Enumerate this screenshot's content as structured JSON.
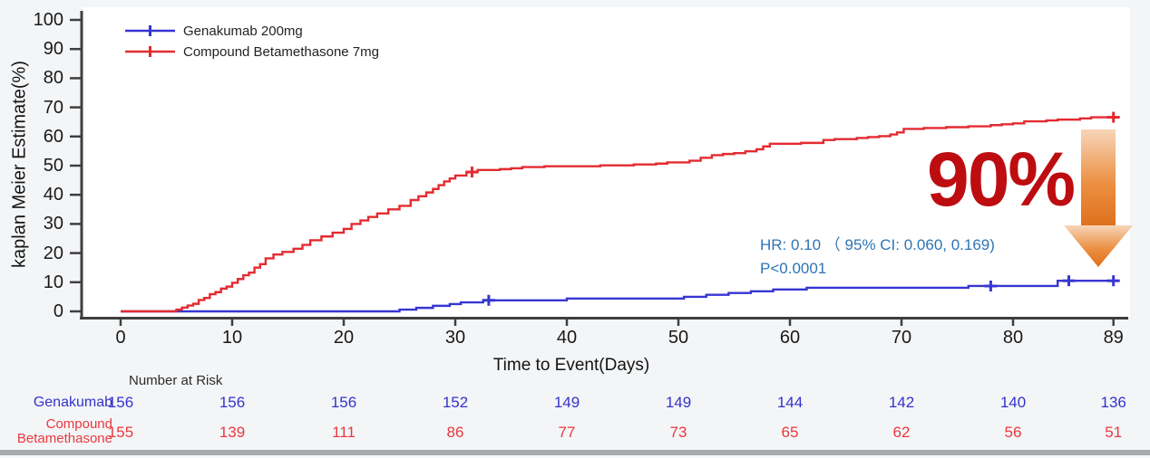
{
  "page": {
    "background": "#f4f5f7",
    "bottom_bar_color": "#a8aaad"
  },
  "chart_data": {
    "type": "line",
    "subtype": "kaplan-meier-step",
    "title": "",
    "xlabel": "Time to Event(Days)",
    "ylabel": "kaplan Meier Estimate(%)",
    "xlim": [
      0,
      89
    ],
    "ylim": [
      0,
      100
    ],
    "x_ticks": [
      0,
      10,
      20,
      30,
      40,
      50,
      60,
      70,
      80,
      89
    ],
    "y_ticks": [
      0,
      10,
      20,
      30,
      40,
      50,
      60,
      70,
      80,
      90,
      100
    ],
    "grid": false,
    "legend_position": "top-left-inside",
    "series": [
      {
        "name": "Genakumab 200mg",
        "color": "#3636d2",
        "points": [
          [
            0,
            0
          ],
          [
            24,
            0
          ],
          [
            25,
            0.6
          ],
          [
            26.5,
            1.2
          ],
          [
            28,
            1.9
          ],
          [
            29.5,
            2.5
          ],
          [
            30.5,
            3.1
          ],
          [
            32.5,
            3.8
          ],
          [
            40,
            4.4
          ],
          [
            50.5,
            5.0
          ],
          [
            52.5,
            5.7
          ],
          [
            54.5,
            6.3
          ],
          [
            56.5,
            6.9
          ],
          [
            58.5,
            7.5
          ],
          [
            61.5,
            8.1
          ],
          [
            76,
            8.7
          ],
          [
            84,
            10.5
          ],
          [
            89,
            10.5
          ]
        ],
        "censor_marks": [
          [
            33,
            3.8
          ],
          [
            78,
            8.7
          ],
          [
            85,
            10.5
          ],
          [
            89,
            10.5
          ]
        ]
      },
      {
        "name": "Compound Betamethasone 7mg",
        "color": "#e32b31",
        "points": [
          [
            0,
            0
          ],
          [
            4.5,
            0
          ],
          [
            5,
            0.6
          ],
          [
            5.5,
            1.3
          ],
          [
            6,
            2.0
          ],
          [
            6.5,
            2.6
          ],
          [
            7,
            3.9
          ],
          [
            7.5,
            4.6
          ],
          [
            8,
            5.9
          ],
          [
            8.5,
            6.6
          ],
          [
            9,
            7.8
          ],
          [
            9.5,
            8.5
          ],
          [
            10,
            9.8
          ],
          [
            10.5,
            11.1
          ],
          [
            11,
            12.4
          ],
          [
            11.5,
            13.3
          ],
          [
            12,
            15.0
          ],
          [
            12.5,
            16.2
          ],
          [
            13,
            18.2
          ],
          [
            13.7,
            19.5
          ],
          [
            14.5,
            20.4
          ],
          [
            15.5,
            21.5
          ],
          [
            16.3,
            22.8
          ],
          [
            17,
            24.4
          ],
          [
            18,
            25.7
          ],
          [
            19,
            27.0
          ],
          [
            20,
            28.3
          ],
          [
            20.7,
            30.0
          ],
          [
            21.5,
            31.2
          ],
          [
            22.2,
            32.4
          ],
          [
            23,
            33.6
          ],
          [
            24,
            35.0
          ],
          [
            25,
            36.2
          ],
          [
            26,
            38.2
          ],
          [
            26.7,
            39.5
          ],
          [
            27.4,
            40.8
          ],
          [
            28,
            42.0
          ],
          [
            28.5,
            43.3
          ],
          [
            29,
            44.6
          ],
          [
            29.5,
            45.6
          ],
          [
            30,
            46.6
          ],
          [
            31,
            47.8
          ],
          [
            32,
            48.5
          ],
          [
            34,
            48.8
          ],
          [
            35,
            49.1
          ],
          [
            36,
            49.5
          ],
          [
            38,
            49.8
          ],
          [
            43,
            50.1
          ],
          [
            46,
            50.4
          ],
          [
            48,
            50.7
          ],
          [
            49,
            51.1
          ],
          [
            51,
            51.7
          ],
          [
            52,
            52.7
          ],
          [
            53,
            53.6
          ],
          [
            54,
            54.0
          ],
          [
            55,
            54.3
          ],
          [
            56,
            54.9
          ],
          [
            57,
            55.6
          ],
          [
            57.6,
            56.6
          ],
          [
            58.2,
            57.5
          ],
          [
            61,
            57.8
          ],
          [
            63,
            58.8
          ],
          [
            64,
            59.1
          ],
          [
            66,
            59.5
          ],
          [
            67,
            59.8
          ],
          [
            68,
            60.1
          ],
          [
            69,
            60.7
          ],
          [
            69.6,
            61.4
          ],
          [
            70.2,
            62.6
          ],
          [
            72,
            62.9
          ],
          [
            74,
            63.2
          ],
          [
            76,
            63.5
          ],
          [
            78,
            63.9
          ],
          [
            79,
            64.2
          ],
          [
            80,
            64.5
          ],
          [
            81,
            65.2
          ],
          [
            83,
            65.5
          ],
          [
            84,
            65.8
          ],
          [
            86,
            66.2
          ],
          [
            87,
            66.6
          ],
          [
            89,
            66.6
          ]
        ],
        "censor_marks": [
          [
            31.5,
            47.8
          ],
          [
            89,
            66.6
          ]
        ]
      }
    ],
    "annotations": {
      "hr_text": "HR:  0.10  （ 95% CI:  0.060, 0.169)",
      "p_text": "P<0.0001",
      "effect_text": "90%",
      "effect_color": "#bd0d10",
      "hr_color": "#2e74b5",
      "arrow_gradient": [
        "#f6d5b8",
        "#ec9043",
        "#de6f1a"
      ]
    }
  },
  "risk_table": {
    "header": "Number at Risk",
    "time_points": [
      0,
      10,
      20,
      30,
      40,
      50,
      60,
      70,
      80,
      89
    ],
    "rows": [
      {
        "label": "Genakumab",
        "label_lines": [
          "Genakumab"
        ],
        "color": "#3333cc",
        "values": [
          156,
          156,
          156,
          152,
          149,
          149,
          144,
          142,
          140,
          136
        ]
      },
      {
        "label": "Compound Betamethasone",
        "label_lines": [
          "Compound",
          "Betamethasone"
        ],
        "color": "#e8393f",
        "values": [
          155,
          139,
          111,
          86,
          77,
          73,
          65,
          62,
          56,
          51
        ]
      }
    ]
  }
}
